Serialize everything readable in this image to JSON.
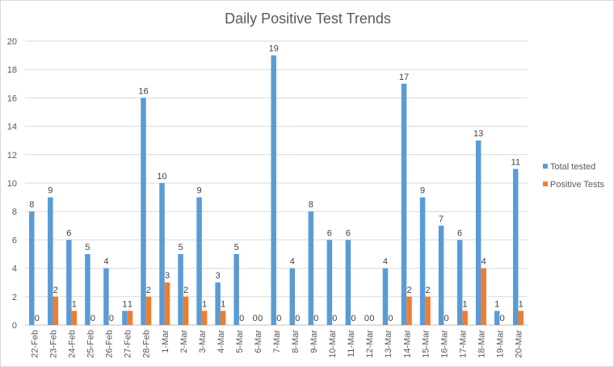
{
  "chart_data": {
    "type": "bar",
    "title": "Daily Positive Test Trends",
    "xlabel": "",
    "ylabel": "",
    "ylim": [
      0,
      20
    ],
    "yticks": [
      0,
      2,
      4,
      6,
      8,
      10,
      12,
      14,
      16,
      18,
      20
    ],
    "grid": true,
    "legend_position": "right",
    "categories": [
      "22-Feb",
      "23-Feb",
      "24-Feb",
      "25-Feb",
      "26-Feb",
      "27-Feb",
      "28-Feb",
      "1-Mar",
      "2-Mar",
      "3-Mar",
      "4-Mar",
      "5-Mar",
      "6-Mar",
      "7-Mar",
      "8-Mar",
      "9-Mar",
      "10-Mar",
      "11-Mar",
      "12-Mar",
      "13-Mar",
      "14-Mar",
      "15-Mar",
      "16-Mar",
      "17-Mar",
      "18-Mar",
      "19-Mar",
      "20-Mar"
    ],
    "series": [
      {
        "name": "Total tested",
        "color": "#5b9bd5",
        "values": [
          8,
          9,
          6,
          5,
          4,
          1,
          16,
          10,
          5,
          9,
          3,
          5,
          0,
          19,
          4,
          8,
          6,
          6,
          0,
          4,
          17,
          9,
          7,
          6,
          13,
          1,
          11
        ]
      },
      {
        "name": "Positive Tests",
        "color": "#ed7d31",
        "values": [
          0,
          2,
          1,
          0,
          0,
          1,
          2,
          3,
          2,
          1,
          1,
          0,
          0,
          0,
          0,
          0,
          0,
          0,
          0,
          0,
          2,
          2,
          0,
          1,
          4,
          0,
          1
        ]
      }
    ]
  }
}
